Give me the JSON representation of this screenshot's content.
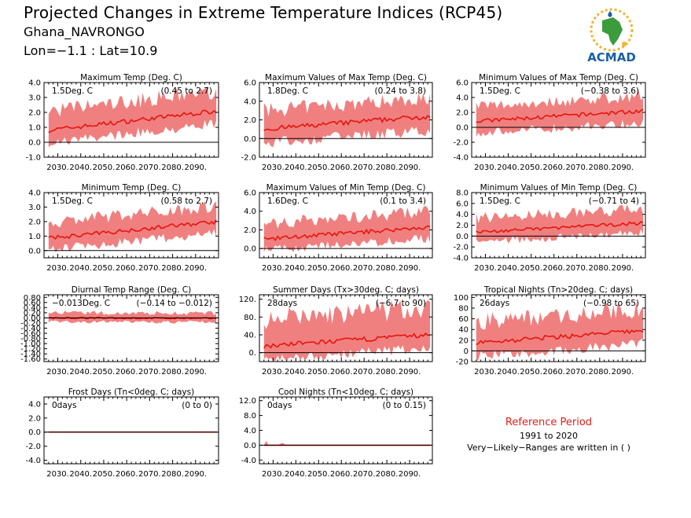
{
  "header": {
    "title": "Projected Changes in Extreme Temperature Indices (RCP45)",
    "site": "Ghana_NAVRONGO",
    "coords": "Lon=−1.1 : Lat=10.9",
    "logo_text": "ACMAD"
  },
  "reference": {
    "title": "Reference Period",
    "years": "1991 to 2020",
    "note": "Very−Likely−Ranges are written in ( )"
  },
  "colors": {
    "band": "#f08080",
    "line": "#e8140c",
    "zero": "#000000",
    "text_red": "#e0201a"
  },
  "x_ticks": [
    "2030.",
    "2040.",
    "2050.",
    "2060.",
    "2070.",
    "2080.",
    "2090."
  ],
  "chart_data": [
    {
      "type": "area",
      "title": "Maximum Temp (Deg. C)",
      "change": "1.5Deg. C",
      "range": "(0.45 to 2.7)",
      "xlim": [
        2024,
        2100
      ],
      "yticks": [
        "4.0",
        "3.0",
        "2.0",
        "1.0",
        "0.0",
        "-1.0"
      ],
      "ylim": [
        -1.0,
        4.0
      ],
      "median": {
        "start": 0.8,
        "end": 2.1
      },
      "spread": {
        "lo": 0.85,
        "hi": 1.3
      },
      "band_clip": [
        -0.9,
        3.9
      ]
    },
    {
      "type": "area",
      "title": "Maximum Values of Max Temp (Deg. C)",
      "change": "1.8Deg. C",
      "range": "(0.24 to 3.8)",
      "xlim": [
        2024,
        2100
      ],
      "yticks": [
        "6.0",
        "4.0",
        "2.0",
        "0.0",
        "-2.0"
      ],
      "ylim": [
        -2.0,
        6.0
      ],
      "median": {
        "start": 1.0,
        "end": 2.4
      },
      "spread": {
        "lo": 1.5,
        "hi": 2.0
      },
      "band_clip": [
        -1.9,
        5.8
      ]
    },
    {
      "type": "area",
      "title": "Minimum Values of Max Temp (Deg. C)",
      "change": "1.5Deg. C",
      "range": "(−0.38 to 3.6)",
      "xlim": [
        2024,
        2100
      ],
      "yticks": [
        "6.0",
        "4.0",
        "2.0",
        "0.0",
        "-2.0",
        "-4.0"
      ],
      "ylim": [
        -4.0,
        6.0
      ],
      "median": {
        "start": 0.8,
        "end": 2.2
      },
      "spread": {
        "lo": 1.6,
        "hi": 2.0
      },
      "band_clip": [
        -3.8,
        5.5
      ]
    },
    {
      "type": "area",
      "title": "Minimum Temp (Deg. C)",
      "change": "1.5Deg. C",
      "range": "(0.58 to 2.7)",
      "xlim": [
        2024,
        2100
      ],
      "yticks": [
        "4.0",
        "3.0",
        "2.0",
        "1.0",
        "0.0"
      ],
      "ylim": [
        -0.5,
        4.0
      ],
      "median": {
        "start": 0.85,
        "end": 2.0
      },
      "spread": {
        "lo": 0.8,
        "hi": 1.1
      },
      "band_clip": [
        -0.4,
        3.9
      ]
    },
    {
      "type": "area",
      "title": "Maximum Values of Min Temp (Deg. C)",
      "change": "1.6Deg. C",
      "range": "(0.1 to 3.4)",
      "xlim": [
        2024,
        2100
      ],
      "yticks": [
        "6.0",
        "4.0",
        "2.0",
        "0.0"
      ],
      "ylim": [
        -1.0,
        6.0
      ],
      "median": {
        "start": 1.0,
        "end": 2.3
      },
      "spread": {
        "lo": 1.2,
        "hi": 1.7
      },
      "band_clip": [
        -0.9,
        5.8
      ]
    },
    {
      "type": "area",
      "title": "Minimum Values of Min Temp (Deg. C)",
      "change": "1.5Deg. C",
      "range": "(−0.71 to 4)",
      "xlim": [
        2024,
        2100
      ],
      "yticks": [
        "8.0",
        "6.0",
        "4.0",
        "2.0",
        "0.0",
        "-2.0",
        "-4.0"
      ],
      "ylim": [
        -4.0,
        8.0
      ],
      "median": {
        "start": 0.7,
        "end": 2.4
      },
      "spread": {
        "lo": 1.8,
        "hi": 2.6
      },
      "band_clip": [
        -3.8,
        7.8
      ]
    },
    {
      "type": "area",
      "title": "Diurnal Temp Range (Deg. C)",
      "change": "−0.013Deg. C",
      "range": "(−0.14 to −0.012)",
      "xlim": [
        2024,
        2100
      ],
      "yticks": [
        "0.80",
        "0.60",
        "0.40",
        "0.20",
        "0.00",
        "-0.20",
        "-0.40",
        "-0.60",
        "-0.80",
        "-1.00",
        "-1.20",
        "-1.40",
        "-1.60"
      ],
      "ylim": [
        -1.7,
        0.9
      ],
      "median": {
        "start": 0.0,
        "end": -0.02
      },
      "spread": {
        "lo": 0.15,
        "hi": 0.2
      },
      "band_clip": [
        -1.3,
        0.3
      ]
    },
    {
      "type": "area",
      "title": "Summer Days (Tx>30deg. C; days)",
      "change": "28days",
      "range": "(−6.7 to 90)",
      "xlim": [
        2024,
        2100
      ],
      "yticks": [
        "120.",
        "80.",
        "40.",
        "0."
      ],
      "ylim": [
        -20,
        130
      ],
      "median": {
        "start": 15,
        "end": 40
      },
      "spread": {
        "lo": 30,
        "hi": 60
      },
      "band_clip": [
        -18,
        120
      ]
    },
    {
      "type": "area",
      "title": "Tropical Nights (Tn>20deg. C; days)",
      "change": "26days",
      "range": "(−0.98 to 65)",
      "xlim": [
        2024,
        2100
      ],
      "yticks": [
        "100",
        "80",
        "60",
        "40",
        "20",
        "0",
        "-20"
      ],
      "ylim": [
        -20,
        105
      ],
      "median": {
        "start": 15,
        "end": 38
      },
      "spread": {
        "lo": 25,
        "hi": 40
      },
      "band_clip": [
        -18,
        100
      ]
    },
    {
      "type": "area",
      "title": "Frost Days (Tn<0deg. C; days)",
      "change": "0days",
      "range": "(0 to 0)",
      "xlim": [
        2024,
        2100
      ],
      "yticks": [
        "4.0",
        "2.0",
        "0.0",
        "-2.0",
        "-4.0"
      ],
      "ylim": [
        -4.5,
        5.0
      ],
      "median": {
        "start": 0,
        "end": 0
      },
      "spread": {
        "lo": 0,
        "hi": 0
      },
      "band_clip": [
        0,
        0
      ]
    },
    {
      "type": "area",
      "title": "Cool Nights (Tn<10deg. C; days)",
      "change": "0days",
      "range": "(0 to 0.15)",
      "xlim": [
        2024,
        2100
      ],
      "yticks": [
        "12.0",
        "8.0",
        "4.0",
        "0.0",
        "-4.0"
      ],
      "ylim": [
        -5.0,
        13.0
      ],
      "median": {
        "start": 0,
        "end": 0
      },
      "spread": {
        "lo": 0,
        "hi": 0
      },
      "band_clip": [
        0,
        1.2
      ]
    }
  ]
}
